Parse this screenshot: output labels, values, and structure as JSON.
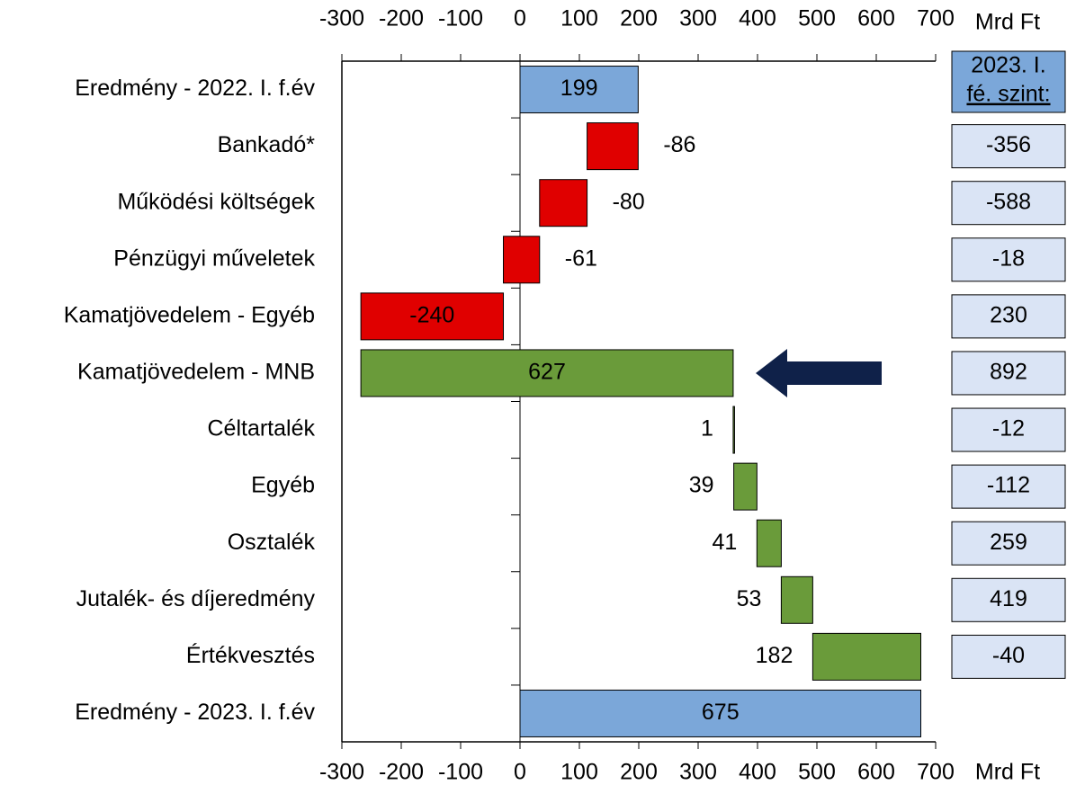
{
  "chart_data": {
    "type": "waterfall",
    "categories": [
      "Eredmény - 2022. I. f.év",
      "Bankadó*",
      "Működési költségek",
      "Pénzügyi műveletek",
      "Kamatjövedelem - Egyéb",
      "Kamatjövedelem - MNB",
      "Céltartalék",
      "Egyéb",
      "Osztalék",
      "Jutalék- és díjeredmény",
      "Értékvesztés",
      "Eredmény - 2023. I. f.év"
    ],
    "values": [
      199,
      -86,
      -80,
      -61,
      -240,
      627,
      1,
      39,
      41,
      53,
      182,
      675
    ],
    "colors": [
      "#7ba7d9",
      "#e00000",
      "#e00000",
      "#e00000",
      "#e00000",
      "#6a9b3a",
      "#6a9b3a",
      "#6a9b3a",
      "#6a9b3a",
      "#6a9b3a",
      "#6a9b3a",
      "#7ba7d9"
    ],
    "x_label": "Mrd Ft",
    "xlim": [
      -300,
      700
    ],
    "xticks": [
      -300,
      -200,
      -100,
      0,
      100,
      200,
      300,
      400,
      500,
      600,
      700
    ],
    "side_title": [
      "2023. I.",
      "fé. szint:"
    ],
    "side_values": [
      null,
      -356,
      -588,
      -18,
      230,
      892,
      -12,
      -112,
      259,
      419,
      -40,
      null
    ]
  }
}
